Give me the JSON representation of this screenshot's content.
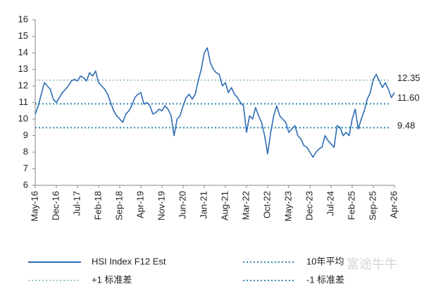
{
  "chart_data": {
    "type": "line",
    "categories": [
      "May-16",
      null,
      null,
      null,
      null,
      null,
      null,
      "Dec-16",
      null,
      null,
      null,
      null,
      null,
      null,
      "Jul-17",
      null,
      null,
      null,
      null,
      null,
      null,
      "Feb-18",
      null,
      null,
      null,
      null,
      null,
      null,
      "Sep-18",
      null,
      null,
      null,
      null,
      null,
      null,
      "Apr-19",
      null,
      null,
      null,
      null,
      null,
      null,
      "Nov-19",
      null,
      null,
      null,
      null,
      null,
      null,
      "Jun-20",
      null,
      null,
      null,
      null,
      null,
      null,
      "Jan-21",
      null,
      null,
      null,
      null,
      null,
      null,
      "Aug-21",
      null,
      null,
      null,
      null,
      null,
      null,
      "Mar-22",
      null,
      null,
      null,
      null,
      null,
      null,
      "Oct-22",
      null,
      null,
      null,
      null,
      null,
      null,
      "May-23",
      null,
      null,
      null,
      null,
      null,
      null,
      "Dec-23",
      null,
      null,
      null,
      null,
      null,
      null,
      "Jul-24",
      null,
      null,
      null,
      null,
      null,
      null,
      "Feb-25",
      null,
      null,
      null,
      null,
      null,
      null,
      "Sep-25",
      null,
      null,
      null,
      null,
      null,
      null,
      "Apr-26"
    ],
    "series": [
      {
        "name": "HSI Index F12 Est",
        "color": "#2e6db4",
        "values": [
          10.3,
          10.8,
          11.5,
          12.2,
          12.0,
          11.8,
          11.2,
          11.0,
          11.3,
          11.6,
          11.8,
          12.0,
          12.3,
          12.4,
          12.3,
          12.6,
          12.5,
          12.3,
          12.8,
          12.6,
          12.9,
          12.2,
          12.0,
          11.8,
          11.5,
          11.0,
          10.5,
          10.2,
          10.0,
          9.8,
          10.3,
          10.5,
          10.8,
          11.3,
          11.5,
          11.6,
          10.9,
          11.0,
          10.8,
          10.3,
          10.4,
          10.6,
          10.5,
          10.8,
          10.6,
          10.2,
          9.0,
          10.0,
          10.2,
          10.8,
          11.3,
          11.5,
          11.2,
          11.5,
          12.3,
          13.0,
          14.0,
          14.3,
          13.4,
          13.0,
          12.8,
          12.7,
          12.0,
          12.2,
          11.6,
          11.9,
          11.5,
          11.3,
          11.0,
          10.8,
          9.2,
          10.2,
          10.0,
          10.7,
          10.2,
          9.8,
          9.0,
          7.9,
          9.2,
          10.2,
          10.8,
          10.2,
          10.0,
          9.8,
          9.2,
          9.4,
          9.6,
          9.0,
          8.8,
          8.4,
          8.3,
          8.0,
          7.7,
          8.0,
          8.2,
          8.3,
          9.0,
          8.7,
          8.5,
          8.3,
          9.6,
          9.5,
          9.0,
          9.2,
          9.0,
          10.0,
          10.6,
          9.4,
          10.0,
          10.5,
          11.2,
          11.6,
          12.4,
          12.7,
          12.3,
          11.9,
          12.2,
          11.8,
          11.3,
          11.6
        ]
      }
    ],
    "reference_lines": [
      {
        "name": "10年平均",
        "value": 10.92,
        "color": "#2f8bb0",
        "style": "dotted",
        "labeled": false
      },
      {
        "name": "+1 标准差",
        "value": 12.35,
        "color": "#9cc3c9",
        "style": "dotted",
        "labeled": true
      },
      {
        "name": "-1 标准差",
        "value": 9.48,
        "color": "#2f8bb0",
        "style": "dotted",
        "labeled": true
      }
    ],
    "annotations": [
      {
        "value": 11.6,
        "label": "11.60"
      }
    ],
    "ylim": [
      6,
      16
    ],
    "yticks": [
      6,
      7,
      8,
      9,
      10,
      11,
      12,
      13,
      14,
      15,
      16
    ],
    "watermark": "富途牛牛"
  }
}
